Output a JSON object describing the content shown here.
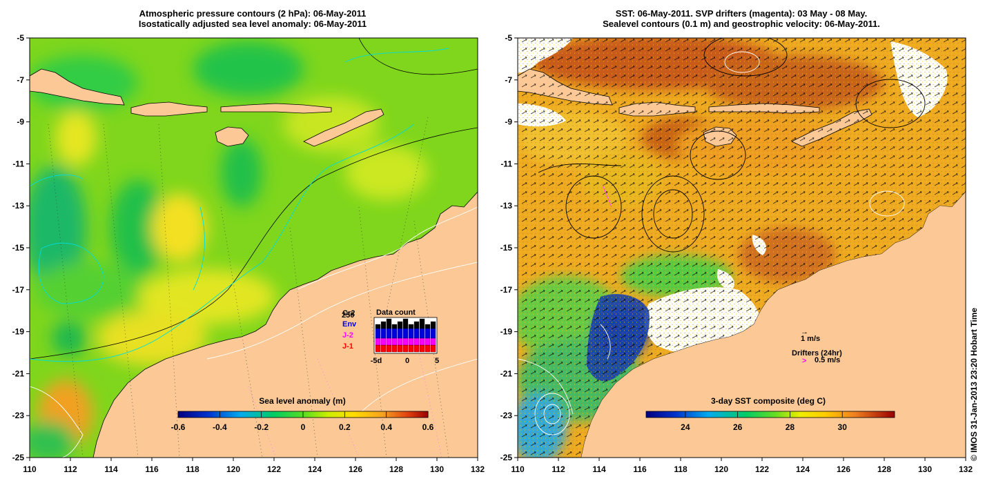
{
  "left_panel": {
    "title_line1": "Atmospheric pressure contours (2 hPa): 06-May-2011",
    "title_line2": "Isostatically adjusted sea level anomaly: 06-May-2011",
    "colorbar": {
      "label": "Sea level anomaly (m)",
      "ticks": [
        "-0.6",
        "-0.4",
        "-0.2",
        "0",
        "0.2",
        "0.4",
        "0.6"
      ],
      "range": [
        -0.6,
        0.6
      ]
    },
    "inset": {
      "title": "Data count",
      "legend": [
        {
          "label": "Cr2",
          "color": "#000000"
        },
        {
          "label": "Env",
          "color": "#0000dd"
        },
        {
          "label": "J-2",
          "color": "#ff00ff"
        },
        {
          "label": "J-1",
          "color": "#ff0000"
        }
      ],
      "overlap_text": "250",
      "x_ticks": [
        "-5d",
        "0",
        "5"
      ]
    }
  },
  "right_panel": {
    "title_line1": "SST: 06-May-2011. SVP drifters (magenta): 03 May - 08 May.",
    "title_line2": "Sealevel contours (0.1 m) and geostrophic velocity: 06-May-2011.",
    "colorbar": {
      "label": "3-day SST composite (deg C)",
      "ticks": [
        "24",
        "26",
        "28",
        "30"
      ],
      "range": [
        22.5,
        32
      ]
    },
    "velocity_legend": {
      "label": "1 m/s",
      "arrow": "→"
    },
    "drifter_legend": {
      "title": "Drifters (24hr)",
      "symbol": ">",
      "label": "0.5 m/s",
      "color": "#ff00ff"
    }
  },
  "axes": {
    "lon_ticks": [
      "110",
      "112",
      "114",
      "116",
      "118",
      "120",
      "122",
      "124",
      "126",
      "128",
      "130",
      "132"
    ],
    "lat_ticks": [
      "-5",
      "-7",
      "-9",
      "-11",
      "-13",
      "-15",
      "-17",
      "-19",
      "-21",
      "-23",
      "-25"
    ]
  },
  "credit": "© IMOS 31-Jan-2013 23:20 Hobart Time",
  "colors": {
    "land": "#fcc996",
    "ocean_green": "#7bd81c",
    "warm": "#e8a420",
    "cold": "#1040b0"
  }
}
